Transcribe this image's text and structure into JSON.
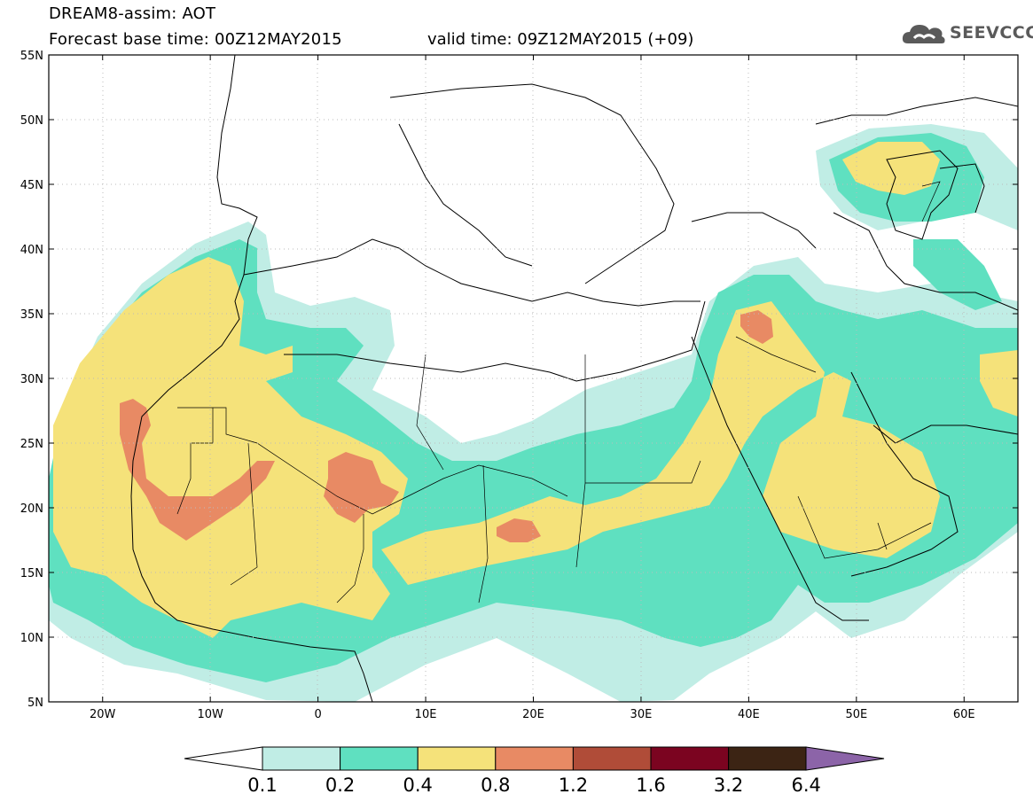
{
  "header": {
    "title": "DREAM8-assim: AOT",
    "base_time": "Forecast base time: 00Z12MAY2015",
    "valid_time": "valid time: 09Z12MAY2015 (+09)"
  },
  "logo": {
    "text": "SEEVCCC",
    "icon": "cloud-icon"
  },
  "axes": {
    "lat_labels": [
      "55N",
      "50N",
      "45N",
      "40N",
      "35N",
      "30N",
      "25N",
      "20N",
      "15N",
      "10N",
      "5N"
    ],
    "lon_labels": [
      "20W",
      "10W",
      "0",
      "10E",
      "20E",
      "30E",
      "40E",
      "50E",
      "60E"
    ],
    "lat_range": [
      5,
      55
    ],
    "lon_range": [
      -25,
      65
    ]
  },
  "colorbar": {
    "labels": [
      "0.1",
      "0.2",
      "0.4",
      "0.8",
      "1.2",
      "1.6",
      "3.2",
      "6.4"
    ],
    "colors": {
      "under": "#ffffff",
      "c1": "#c0ede5",
      "c2": "#5fe0c0",
      "c3": "#f5e27a",
      "c4": "#e88a64",
      "c5": "#b04c38",
      "c6": "#7b0420",
      "c7": "#3c2414",
      "over": "#8c64a8"
    }
  }
}
